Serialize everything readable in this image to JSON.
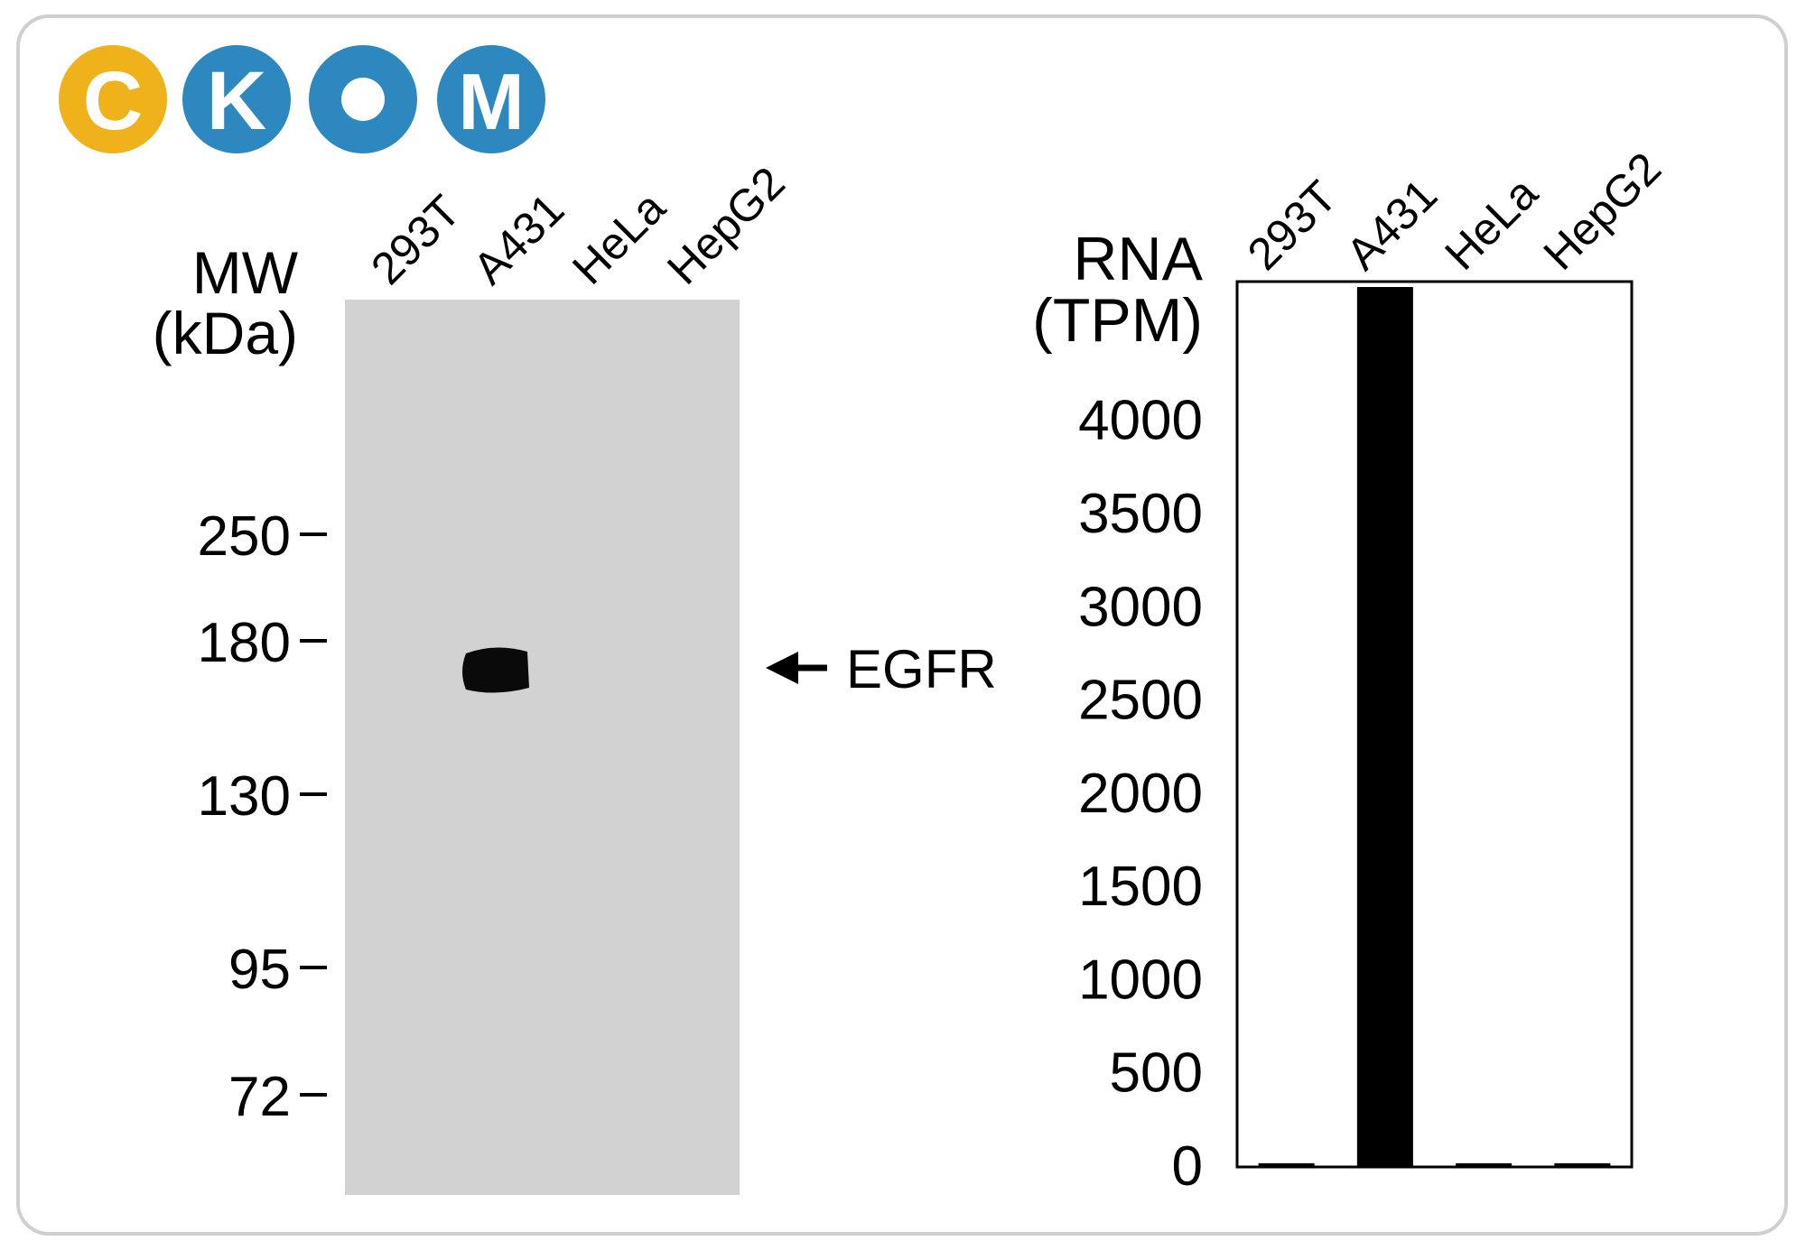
{
  "logo": {
    "letters": [
      "C",
      "K",
      "O",
      "M"
    ],
    "colors": [
      "#f0b21b",
      "#2e88c0",
      "#2e88c0",
      "#2e88c0"
    ]
  },
  "blot": {
    "mw_label": "MW",
    "mw_unit": "(kDa)",
    "lanes": [
      "293T",
      "A431",
      "HeLa",
      "HepG2"
    ],
    "markers": [
      "250",
      "180",
      "130",
      "95",
      "72"
    ],
    "band_label": "EGFR",
    "band_lane": "A431",
    "membrane_color": "#d2d2d2"
  },
  "chart_data": {
    "type": "bar",
    "categories": [
      "293T",
      "A431",
      "HeLa",
      "HepG2"
    ],
    "values": [
      20,
      4720,
      20,
      20
    ],
    "ylabel": "RNA",
    "yunit": "(TPM)",
    "ylim": [
      0,
      4720
    ],
    "yticks": [
      0,
      500,
      1000,
      1500,
      2000,
      2500,
      3000,
      3500,
      4000
    ],
    "bar_color": "#000000",
    "grid": false
  }
}
